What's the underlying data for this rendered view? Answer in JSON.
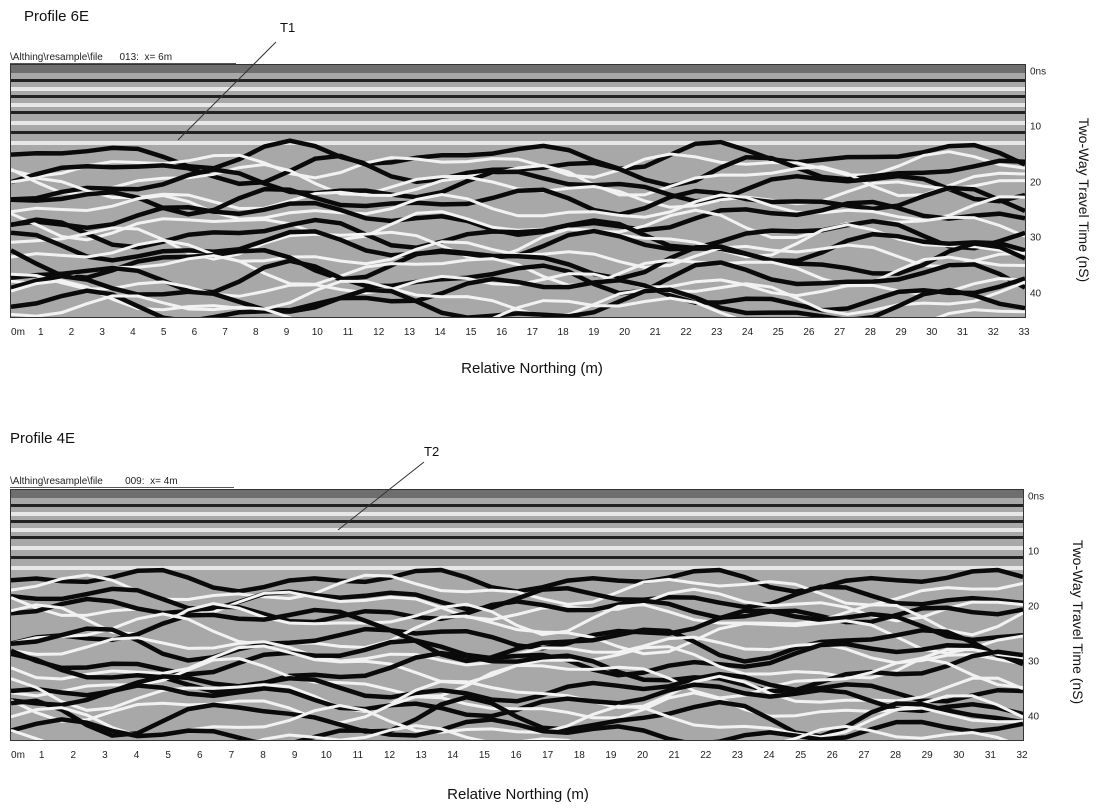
{
  "profiles": [
    {
      "title": "Profile 6E",
      "file_path": "\\Althing\\resample\\file",
      "file_info": "013:  x= 6m",
      "annotation": "T1",
      "x_tick_labels": [
        "0m",
        "1",
        "2",
        "3",
        "4",
        "5",
        "6",
        "7",
        "8",
        "9",
        "10",
        "11",
        "12",
        "13",
        "14",
        "15",
        "16",
        "17",
        "18",
        "19",
        "20",
        "21",
        "22",
        "23",
        "24",
        "25",
        "26",
        "27",
        "28",
        "29",
        "30",
        "31",
        "32",
        "33"
      ],
      "y_tick_labels": [
        "0ns",
        "10",
        "20",
        "30",
        "40"
      ],
      "y_ticks": [
        0,
        10,
        20,
        30,
        40
      ],
      "xlabel": "Relative Northing (m)",
      "ylabel": "Two-Way Travel Time (nS)"
    },
    {
      "title": "Profile 4E",
      "file_path": "\\Althing\\resample\\file",
      "file_info": "009:  x= 4m",
      "annotation": "T2",
      "x_tick_labels": [
        "0m",
        "1",
        "2",
        "3",
        "4",
        "5",
        "6",
        "7",
        "8",
        "9",
        "10",
        "11",
        "12",
        "13",
        "14",
        "15",
        "16",
        "17",
        "18",
        "19",
        "20",
        "21",
        "22",
        "23",
        "24",
        "25",
        "26",
        "27",
        "28",
        "29",
        "30",
        "31",
        "32"
      ],
      "y_tick_labels": [
        "0ns",
        "10",
        "20",
        "30",
        "40"
      ],
      "y_ticks": [
        0,
        10,
        20,
        30,
        40
      ],
      "xlabel": "Relative Northing (m)",
      "ylabel": "Two-Way Travel Time (nS)"
    }
  ],
  "colors": {
    "band_dark": "#0a0a0a",
    "band_light": "#f2f2f2",
    "header_bar": "#6e6e6e"
  }
}
